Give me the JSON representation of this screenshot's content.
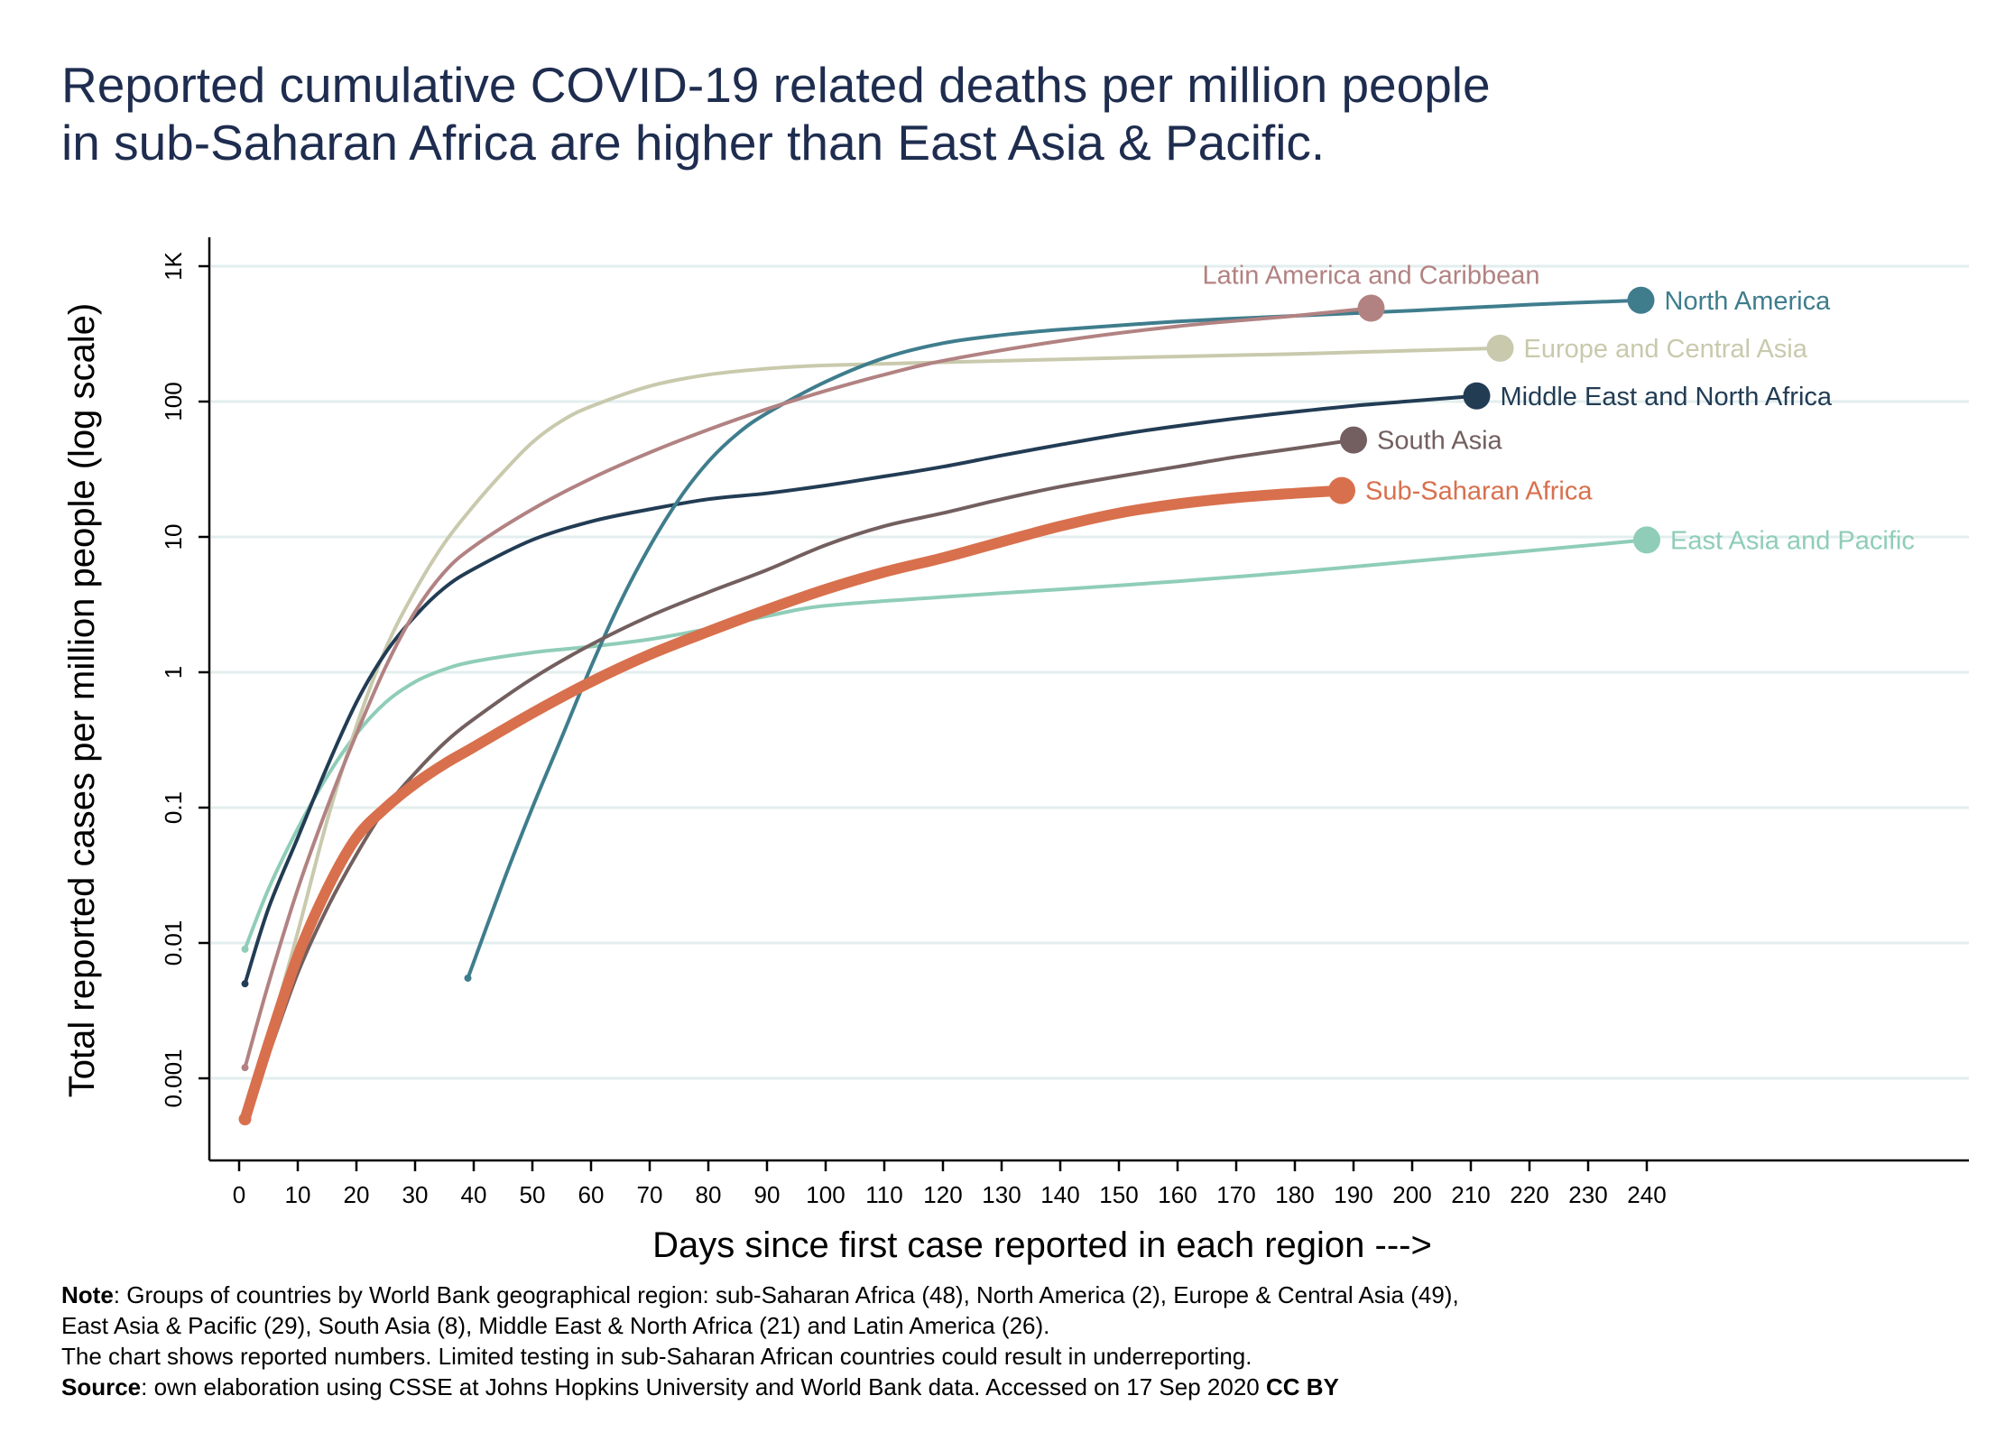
{
  "chart_data": {
    "type": "line",
    "title": [
      "Reported cumulative COVID-19 related deaths per million people",
      "in sub-Saharan Africa are higher than East Asia & Pacific."
    ],
    "xlabel": "Days since first case reported in each region --->",
    "ylabel": "Total reported cases per million people (log scale)",
    "y_scale": "log",
    "xlim": [
      0,
      240
    ],
    "ylim": [
      0.0003,
      1500
    ],
    "x_ticks": [
      0,
      10,
      20,
      30,
      40,
      50,
      60,
      70,
      80,
      90,
      100,
      110,
      120,
      130,
      140,
      150,
      160,
      170,
      180,
      190,
      200,
      210,
      220,
      230,
      240
    ],
    "y_ticks": [
      {
        "value": 0.001,
        "label": "0.001"
      },
      {
        "value": 0.01,
        "label": "0.01"
      },
      {
        "value": 0.1,
        "label": "0.1"
      },
      {
        "value": 1,
        "label": "1"
      },
      {
        "value": 10,
        "label": "10"
      },
      {
        "value": 100,
        "label": "100"
      },
      {
        "value": 1000,
        "label": "1K"
      }
    ],
    "grid": true,
    "legend": "none (labels at line ends)",
    "series": [
      {
        "name": "East Asia and Pacific",
        "color": "#8fcdb8",
        "width": 4,
        "label_side": "right",
        "x": [
          1,
          5,
          10,
          15,
          20,
          25,
          30,
          35,
          40,
          50,
          60,
          70,
          80,
          90,
          100,
          120,
          140,
          160,
          180,
          200,
          220,
          240
        ],
        "y": [
          0.009,
          0.025,
          0.07,
          0.17,
          0.35,
          0.6,
          0.85,
          1.05,
          1.2,
          1.4,
          1.55,
          1.75,
          2.1,
          2.6,
          3.1,
          3.6,
          4.1,
          4.7,
          5.5,
          6.6,
          7.9,
          9.5
        ]
      },
      {
        "name": "Europe and Central Asia",
        "color": "#c9c9ad",
        "width": 4,
        "label_side": "right",
        "x": [
          1,
          5,
          10,
          15,
          20,
          25,
          30,
          35,
          40,
          45,
          50,
          55,
          60,
          70,
          80,
          90,
          100,
          120,
          140,
          160,
          180,
          200,
          215
        ],
        "y": [
          0.0005,
          0.002,
          0.012,
          0.08,
          0.4,
          1.5,
          4,
          9,
          17,
          30,
          50,
          72,
          92,
          130,
          158,
          175,
          185,
          195,
          205,
          215,
          225,
          238,
          248
        ]
      },
      {
        "name": "Middle East and North Africa",
        "color": "#223c54",
        "width": 4,
        "label_side": "right",
        "x": [
          1,
          5,
          10,
          15,
          20,
          25,
          30,
          35,
          40,
          50,
          60,
          70,
          80,
          90,
          100,
          110,
          120,
          130,
          140,
          150,
          160,
          170,
          180,
          190,
          200,
          211
        ],
        "y": [
          0.005,
          0.018,
          0.06,
          0.2,
          0.6,
          1.4,
          2.6,
          4.2,
          5.8,
          9.5,
          13,
          16,
          19,
          21,
          24,
          28,
          33,
          40,
          48,
          57,
          66,
          75,
          84,
          93,
          101,
          110
        ]
      },
      {
        "name": "North America",
        "color": "#3f7d8d",
        "width": 4,
        "label_side": "right",
        "x": [
          39,
          45,
          50,
          55,
          60,
          65,
          70,
          75,
          80,
          85,
          90,
          100,
          110,
          120,
          130,
          140,
          160,
          180,
          200,
          220,
          239
        ],
        "y": [
          0.0055,
          0.028,
          0.1,
          0.33,
          1.1,
          3.3,
          8.5,
          19,
          36,
          58,
          82,
          140,
          210,
          270,
          310,
          340,
          390,
          430,
          470,
          520,
          560
        ]
      },
      {
        "name": "Latin America and Caribbean",
        "color": "#b28282",
        "width": 4,
        "label_side": "top",
        "x": [
          1,
          5,
          10,
          15,
          20,
          25,
          30,
          35,
          40,
          50,
          60,
          70,
          80,
          90,
          100,
          110,
          120,
          140,
          160,
          180,
          193
        ],
        "y": [
          0.0012,
          0.005,
          0.025,
          0.1,
          0.35,
          1.1,
          2.8,
          5.5,
          8.5,
          16,
          27,
          42,
          62,
          88,
          120,
          158,
          200,
          280,
          360,
          430,
          490
        ]
      },
      {
        "name": "South Asia",
        "color": "#735f5f",
        "width": 4,
        "label_side": "right",
        "x": [
          1,
          5,
          10,
          15,
          20,
          25,
          30,
          35,
          40,
          50,
          60,
          70,
          80,
          90,
          100,
          110,
          120,
          130,
          140,
          150,
          160,
          170,
          180,
          190
        ],
        "y": [
          0.0005,
          0.0015,
          0.006,
          0.018,
          0.045,
          0.1,
          0.18,
          0.3,
          0.45,
          0.9,
          1.6,
          2.6,
          3.9,
          5.7,
          8.7,
          12,
          15,
          19,
          23.5,
          28,
          33,
          39,
          45,
          52
        ]
      },
      {
        "name": "Sub-Saharan Africa",
        "color": "#d8704d",
        "width": 12,
        "label_side": "right",
        "x": [
          1,
          5,
          10,
          15,
          20,
          25,
          30,
          35,
          40,
          50,
          60,
          70,
          80,
          90,
          100,
          110,
          120,
          130,
          140,
          150,
          160,
          170,
          180,
          188
        ],
        "y": [
          0.0005,
          0.0018,
          0.008,
          0.025,
          0.06,
          0.1,
          0.15,
          0.21,
          0.28,
          0.5,
          0.85,
          1.35,
          2,
          2.9,
          4.1,
          5.5,
          7,
          9.2,
          12,
          15,
          17.5,
          19.5,
          21,
          22
        ]
      }
    ]
  },
  "footnote": {
    "note_label": "Note",
    "note_line1": ": Groups of countries by World Bank geographical region: sub-Saharan Africa (48), North America (2), Europe & Central Asia (49),",
    "note_line2": "East Asia & Pacific (29), South Asia (8), Middle East & North Africa (21) and Latin America (26).",
    "note_line3": "The chart shows reported numbers. Limited testing in sub-Saharan African countries could result in underreporting.",
    "source_label": "Source",
    "source_text": ": own elaboration using CSSE at Johns Hopkins University and World Bank data.  Accessed on 17 Sep 2020 ",
    "license": "CC BY"
  }
}
